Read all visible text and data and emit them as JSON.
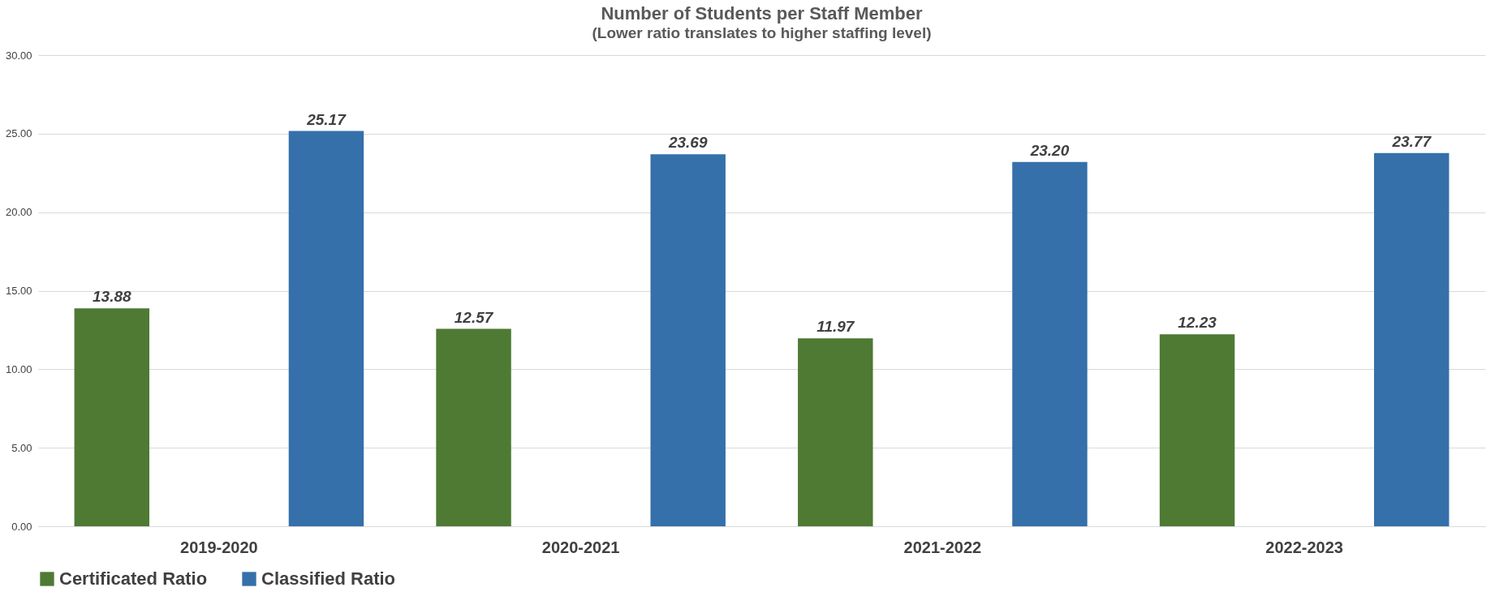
{
  "chart_data": {
    "type": "bar",
    "title": "Number of Students per Staff Member",
    "subtitle": "(Lower ratio translates to higher staffing level)",
    "categories": [
      "2019-2020",
      "2020-2021",
      "2021-2022",
      "2022-2023"
    ],
    "series": [
      {
        "name": "Certificated Ratio",
        "color": "#4e7a34",
        "values": [
          13.88,
          12.57,
          11.97,
          12.23
        ],
        "value_labels": [
          "13.88",
          "12.57",
          "11.97",
          "12.23"
        ]
      },
      {
        "name": "Classified Ratio",
        "color": "#3570aa",
        "values": [
          25.17,
          23.69,
          23.2,
          23.77
        ],
        "value_labels": [
          "25.17",
          "23.69",
          "23.20",
          "23.77"
        ]
      }
    ],
    "ylim": [
      0,
      30
    ],
    "yticks": [
      {
        "value": 0,
        "label": "0.00"
      },
      {
        "value": 5,
        "label": "5.00"
      },
      {
        "value": 10,
        "label": "10.00"
      },
      {
        "value": 15,
        "label": "15.00"
      },
      {
        "value": 20,
        "label": "20.00"
      },
      {
        "value": 25,
        "label": "25.00"
      },
      {
        "value": 30,
        "label": "30.00"
      }
    ],
    "grid": "y",
    "legend": "bottom"
  }
}
